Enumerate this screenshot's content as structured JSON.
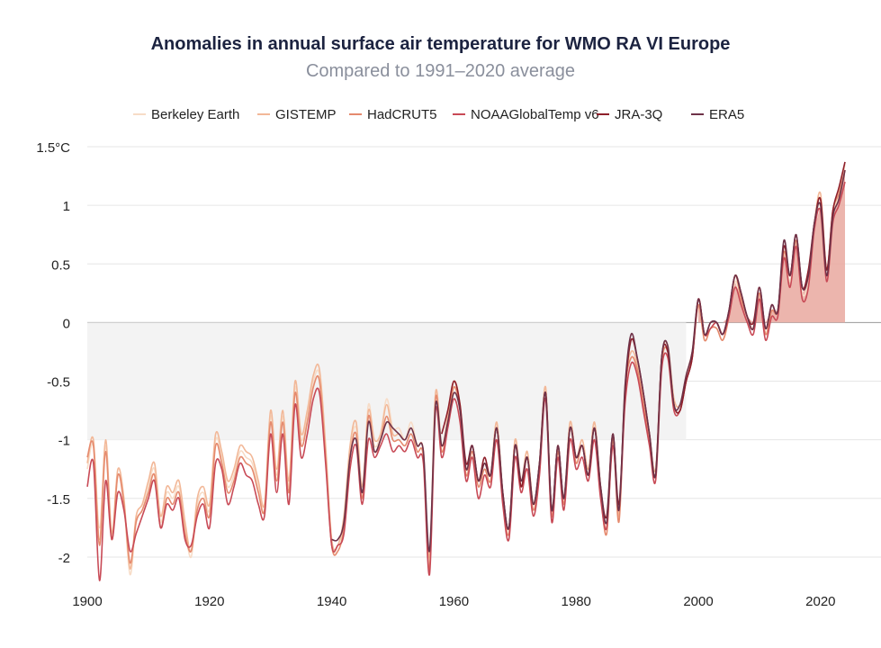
{
  "chart_data": {
    "type": "line",
    "title": "Anomalies in annual surface air temperature for WMO RA VI Europe",
    "subtitle": "Compared to 1991–2020 average",
    "xlabel": "",
    "ylabel": "",
    "xlim": [
      1900,
      2024
    ],
    "ylim": [
      -2.2,
      1.5
    ],
    "grid": true,
    "legend_position": "top",
    "x_ticks": [
      1900,
      1920,
      1940,
      1960,
      1980,
      2000,
      2020
    ],
    "x_tick_labels": [
      "1900",
      "1920",
      "1940",
      "1960",
      "1980",
      "2000",
      "2020"
    ],
    "y_ticks": [
      1.5,
      1,
      0.5,
      0,
      -0.5,
      -1,
      -1.5,
      -2
    ],
    "y_tick_labels": [
      "1.5°C",
      "1",
      "0.5",
      "0",
      "-0.5",
      "-1",
      "-1.5",
      "-2"
    ],
    "series": [
      {
        "name": "Berkeley Earth",
        "color": "#f7dcc7",
        "start_year": 1900,
        "values": [
          -1.25,
          -1.05,
          -1.75,
          -1.05,
          -1.85,
          -1.3,
          -1.55,
          -2.15,
          -1.7,
          -1.6,
          -1.4,
          -1.25,
          -1.7,
          -1.45,
          -1.5,
          -1.4,
          -1.75,
          -2.0,
          -1.55,
          -1.45,
          -1.6,
          -1.0,
          -1.15,
          -1.4,
          -1.3,
          -1.1,
          -1.15,
          -1.2,
          -1.4,
          -1.6,
          -0.8,
          -1.3,
          -0.8,
          -1.4,
          -0.55,
          -1.0,
          -0.8,
          -0.5,
          -0.45,
          -1.1,
          -1.9,
          -1.9,
          -1.7,
          -1.1,
          -0.9,
          -1.45,
          -0.7,
          -1.05,
          -0.95,
          -0.65,
          -0.9,
          -0.9,
          -1.0,
          -0.85,
          -1.05,
          -1.1,
          -2.05,
          -0.6,
          -1.05,
          -0.8,
          -0.55,
          -0.7,
          -1.25,
          -1.05,
          -1.35,
          -1.2,
          -1.3,
          -0.85,
          -1.45,
          -1.75,
          -1.0,
          -1.35,
          -1.1,
          -1.55,
          -1.2,
          -0.55,
          -1.6,
          -1.05,
          -1.5,
          -0.85,
          -1.15,
          -1.0,
          -1.25,
          -0.85,
          -1.4,
          -1.75,
          -0.95,
          -1.65,
          -0.55,
          -0.3,
          -0.4,
          -0.7,
          -1.0,
          -1.3,
          -0.3,
          -0.2,
          -0.65,
          -0.7,
          -0.45,
          -0.25,
          0.15,
          -0.15,
          -0.05,
          -0.05,
          -0.15,
          0.05,
          0.35,
          0.2,
          0.05,
          -0.05,
          0.25,
          -0.1,
          0.1,
          0.1,
          0.6,
          0.35,
          0.7,
          0.25,
          0.35,
          0.8,
          1.0,
          0.4,
          0.9,
          1.1,
          1.35
        ]
      },
      {
        "name": "GISTEMP",
        "color": "#f2b898",
        "start_year": 1900,
        "values": [
          -1.2,
          -1.0,
          -1.85,
          -1.0,
          -1.8,
          -1.25,
          -1.5,
          -2.1,
          -1.65,
          -1.55,
          -1.35,
          -1.2,
          -1.65,
          -1.4,
          -1.45,
          -1.35,
          -1.7,
          -1.95,
          -1.5,
          -1.4,
          -1.55,
          -0.95,
          -1.1,
          -1.35,
          -1.25,
          -1.05,
          -1.1,
          -1.15,
          -1.35,
          -1.55,
          -0.75,
          -1.25,
          -0.75,
          -1.35,
          -0.5,
          -0.95,
          -0.75,
          -0.45,
          -0.4,
          -1.05,
          -1.85,
          -1.9,
          -1.65,
          -1.05,
          -0.85,
          -1.4,
          -0.75,
          -1.0,
          -0.95,
          -0.7,
          -0.95,
          -0.95,
          -1.0,
          -0.9,
          -1.05,
          -1.1,
          -2.0,
          -0.6,
          -1.05,
          -0.8,
          -0.5,
          -0.7,
          -1.25,
          -1.05,
          -1.35,
          -1.2,
          -1.3,
          -0.85,
          -1.45,
          -1.75,
          -1.0,
          -1.35,
          -1.1,
          -1.55,
          -1.2,
          -0.55,
          -1.6,
          -1.05,
          -1.5,
          -0.85,
          -1.15,
          -1.0,
          -1.25,
          -0.85,
          -1.4,
          -1.75,
          -0.95,
          -1.65,
          -0.55,
          -0.25,
          -0.35,
          -0.65,
          -0.95,
          -1.25,
          -0.3,
          -0.2,
          -0.65,
          -0.7,
          -0.45,
          -0.25,
          0.2,
          -0.1,
          -0.05,
          0.0,
          -0.1,
          0.05,
          0.4,
          0.25,
          0.05,
          -0.05,
          0.25,
          -0.1,
          0.1,
          0.1,
          0.6,
          0.4,
          0.7,
          0.3,
          0.4,
          0.85,
          1.1,
          0.45,
          0.95,
          1.1,
          1.3
        ]
      },
      {
        "name": "HadCRUT5",
        "color": "#e58a6e",
        "start_year": 1900,
        "values": [
          -1.15,
          -1.05,
          -1.9,
          -1.1,
          -1.85,
          -1.3,
          -1.55,
          -2.05,
          -1.7,
          -1.6,
          -1.45,
          -1.3,
          -1.75,
          -1.5,
          -1.55,
          -1.45,
          -1.8,
          -1.95,
          -1.6,
          -1.5,
          -1.65,
          -1.05,
          -1.2,
          -1.45,
          -1.35,
          -1.15,
          -1.2,
          -1.25,
          -1.45,
          -1.6,
          -0.85,
          -1.35,
          -0.85,
          -1.45,
          -0.6,
          -1.05,
          -0.85,
          -0.55,
          -0.5,
          -1.15,
          -1.9,
          -1.95,
          -1.75,
          -1.15,
          -0.95,
          -1.5,
          -0.8,
          -1.1,
          -1.0,
          -0.8,
          -1.0,
          -1.0,
          -1.05,
          -0.95,
          -1.1,
          -1.15,
          -2.1,
          -0.65,
          -1.1,
          -0.85,
          -0.55,
          -0.75,
          -1.3,
          -1.1,
          -1.4,
          -1.25,
          -1.35,
          -0.9,
          -1.5,
          -1.8,
          -1.05,
          -1.4,
          -1.15,
          -1.6,
          -1.25,
          -0.6,
          -1.65,
          -1.1,
          -1.55,
          -0.9,
          -1.2,
          -1.05,
          -1.3,
          -0.9,
          -1.45,
          -1.8,
          -1.0,
          -1.7,
          -0.6,
          -0.3,
          -0.4,
          -0.7,
          -1.0,
          -1.3,
          -0.35,
          -0.25,
          -0.7,
          -0.75,
          -0.5,
          -0.3,
          0.15,
          -0.15,
          -0.05,
          -0.05,
          -0.15,
          0.05,
          0.4,
          0.2,
          0.05,
          -0.05,
          0.25,
          -0.1,
          0.1,
          0.1,
          0.6,
          0.4,
          0.7,
          0.3,
          0.4,
          0.85,
          1.05,
          0.45,
          0.95,
          1.1,
          1.3
        ]
      },
      {
        "name": "NOAAGlobalTemp v6",
        "color": "#c84a56",
        "start_year": 1900,
        "values": [
          -1.4,
          -1.2,
          -2.2,
          -1.35,
          -1.85,
          -1.45,
          -1.6,
          -1.95,
          -1.8,
          -1.65,
          -1.5,
          -1.35,
          -1.75,
          -1.55,
          -1.6,
          -1.5,
          -1.85,
          -1.9,
          -1.65,
          -1.55,
          -1.75,
          -1.2,
          -1.25,
          -1.55,
          -1.4,
          -1.2,
          -1.3,
          -1.35,
          -1.55,
          -1.65,
          -0.95,
          -1.45,
          -0.95,
          -1.55,
          -0.7,
          -1.15,
          -0.95,
          -0.65,
          -0.6,
          -1.2,
          -1.9,
          -1.9,
          -1.8,
          -1.25,
          -1.05,
          -1.55,
          -1.0,
          -1.15,
          -1.05,
          -0.95,
          -1.1,
          -1.05,
          -1.1,
          -1.0,
          -1.15,
          -1.2,
          -2.15,
          -0.75,
          -1.15,
          -0.9,
          -0.65,
          -0.85,
          -1.35,
          -1.15,
          -1.5,
          -1.3,
          -1.4,
          -1.0,
          -1.55,
          -1.85,
          -1.15,
          -1.45,
          -1.25,
          -1.65,
          -1.3,
          -0.65,
          -1.7,
          -1.15,
          -1.6,
          -1.0,
          -1.25,
          -1.15,
          -1.35,
          -1.0,
          -1.5,
          -1.75,
          -1.05,
          -1.6,
          -0.7,
          -0.35,
          -0.45,
          -0.75,
          -1.05,
          -1.35,
          -0.4,
          -0.3,
          -0.75,
          -0.75,
          -0.5,
          -0.3,
          0.2,
          -0.1,
          -0.05,
          0.0,
          -0.1,
          0.05,
          0.3,
          0.15,
          0.0,
          -0.1,
          0.2,
          -0.15,
          0.05,
          0.05,
          0.55,
          0.3,
          0.65,
          0.2,
          0.3,
          0.8,
          0.95,
          0.35,
          0.85,
          1.0,
          1.2
        ]
      },
      {
        "name": "JRA-3Q",
        "color": "#8e1f2a",
        "start_year": 1958,
        "values": [
          -0.95,
          -0.75,
          -0.5,
          -0.7,
          -1.2,
          -1.05,
          -1.35,
          -1.15,
          -1.3,
          -0.9,
          -1.45,
          -1.75,
          -1.05,
          -1.4,
          -1.15,
          -1.55,
          -1.2,
          -0.6,
          -1.6,
          -1.05,
          -1.5,
          -0.9,
          -1.15,
          -1.05,
          -1.3,
          -0.9,
          -1.4,
          -1.65,
          -0.95,
          -1.55,
          -0.6,
          -0.15,
          -0.3,
          -0.6,
          -0.95,
          -1.3,
          -0.3,
          -0.25,
          -0.7,
          -0.75,
          -0.5,
          -0.3,
          0.2,
          -0.1,
          0.0,
          0.0,
          -0.1,
          0.1,
          0.4,
          0.25,
          0.05,
          0.0,
          0.3,
          -0.05,
          0.15,
          0.1,
          0.65,
          0.4,
          0.75,
          0.3,
          0.45,
          0.85,
          1.05,
          0.45,
          0.95,
          1.15,
          1.37
        ]
      },
      {
        "name": "ERA5",
        "color": "#6e3248",
        "start_year": 1940,
        "values": [
          -1.85,
          -1.85,
          -1.7,
          -1.15,
          -1.0,
          -1.45,
          -0.85,
          -1.1,
          -1.0,
          -0.85,
          -0.9,
          -0.95,
          -1.0,
          -0.9,
          -1.05,
          -1.1,
          -1.95,
          -0.7,
          -1.05,
          -0.85,
          -0.6,
          -0.75,
          -1.25,
          -1.05,
          -1.35,
          -1.2,
          -1.3,
          -0.9,
          -1.45,
          -1.75,
          -1.05,
          -1.35,
          -1.15,
          -1.55,
          -1.2,
          -0.6,
          -1.6,
          -1.05,
          -1.5,
          -0.9,
          -1.15,
          -1.05,
          -1.3,
          -0.9,
          -1.4,
          -1.7,
          -0.95,
          -1.6,
          -0.55,
          -0.1,
          -0.3,
          -0.6,
          -0.95,
          -1.3,
          -0.3,
          -0.2,
          -0.7,
          -0.7,
          -0.45,
          -0.25,
          0.2,
          -0.1,
          0.0,
          0.0,
          -0.1,
          0.1,
          0.4,
          0.25,
          0.05,
          -0.05,
          0.3,
          -0.05,
          0.15,
          0.1,
          0.7,
          0.4,
          0.75,
          0.3,
          0.4,
          0.85,
          1.0,
          0.4,
          0.9,
          1.05,
          1.3
        ]
      }
    ]
  }
}
